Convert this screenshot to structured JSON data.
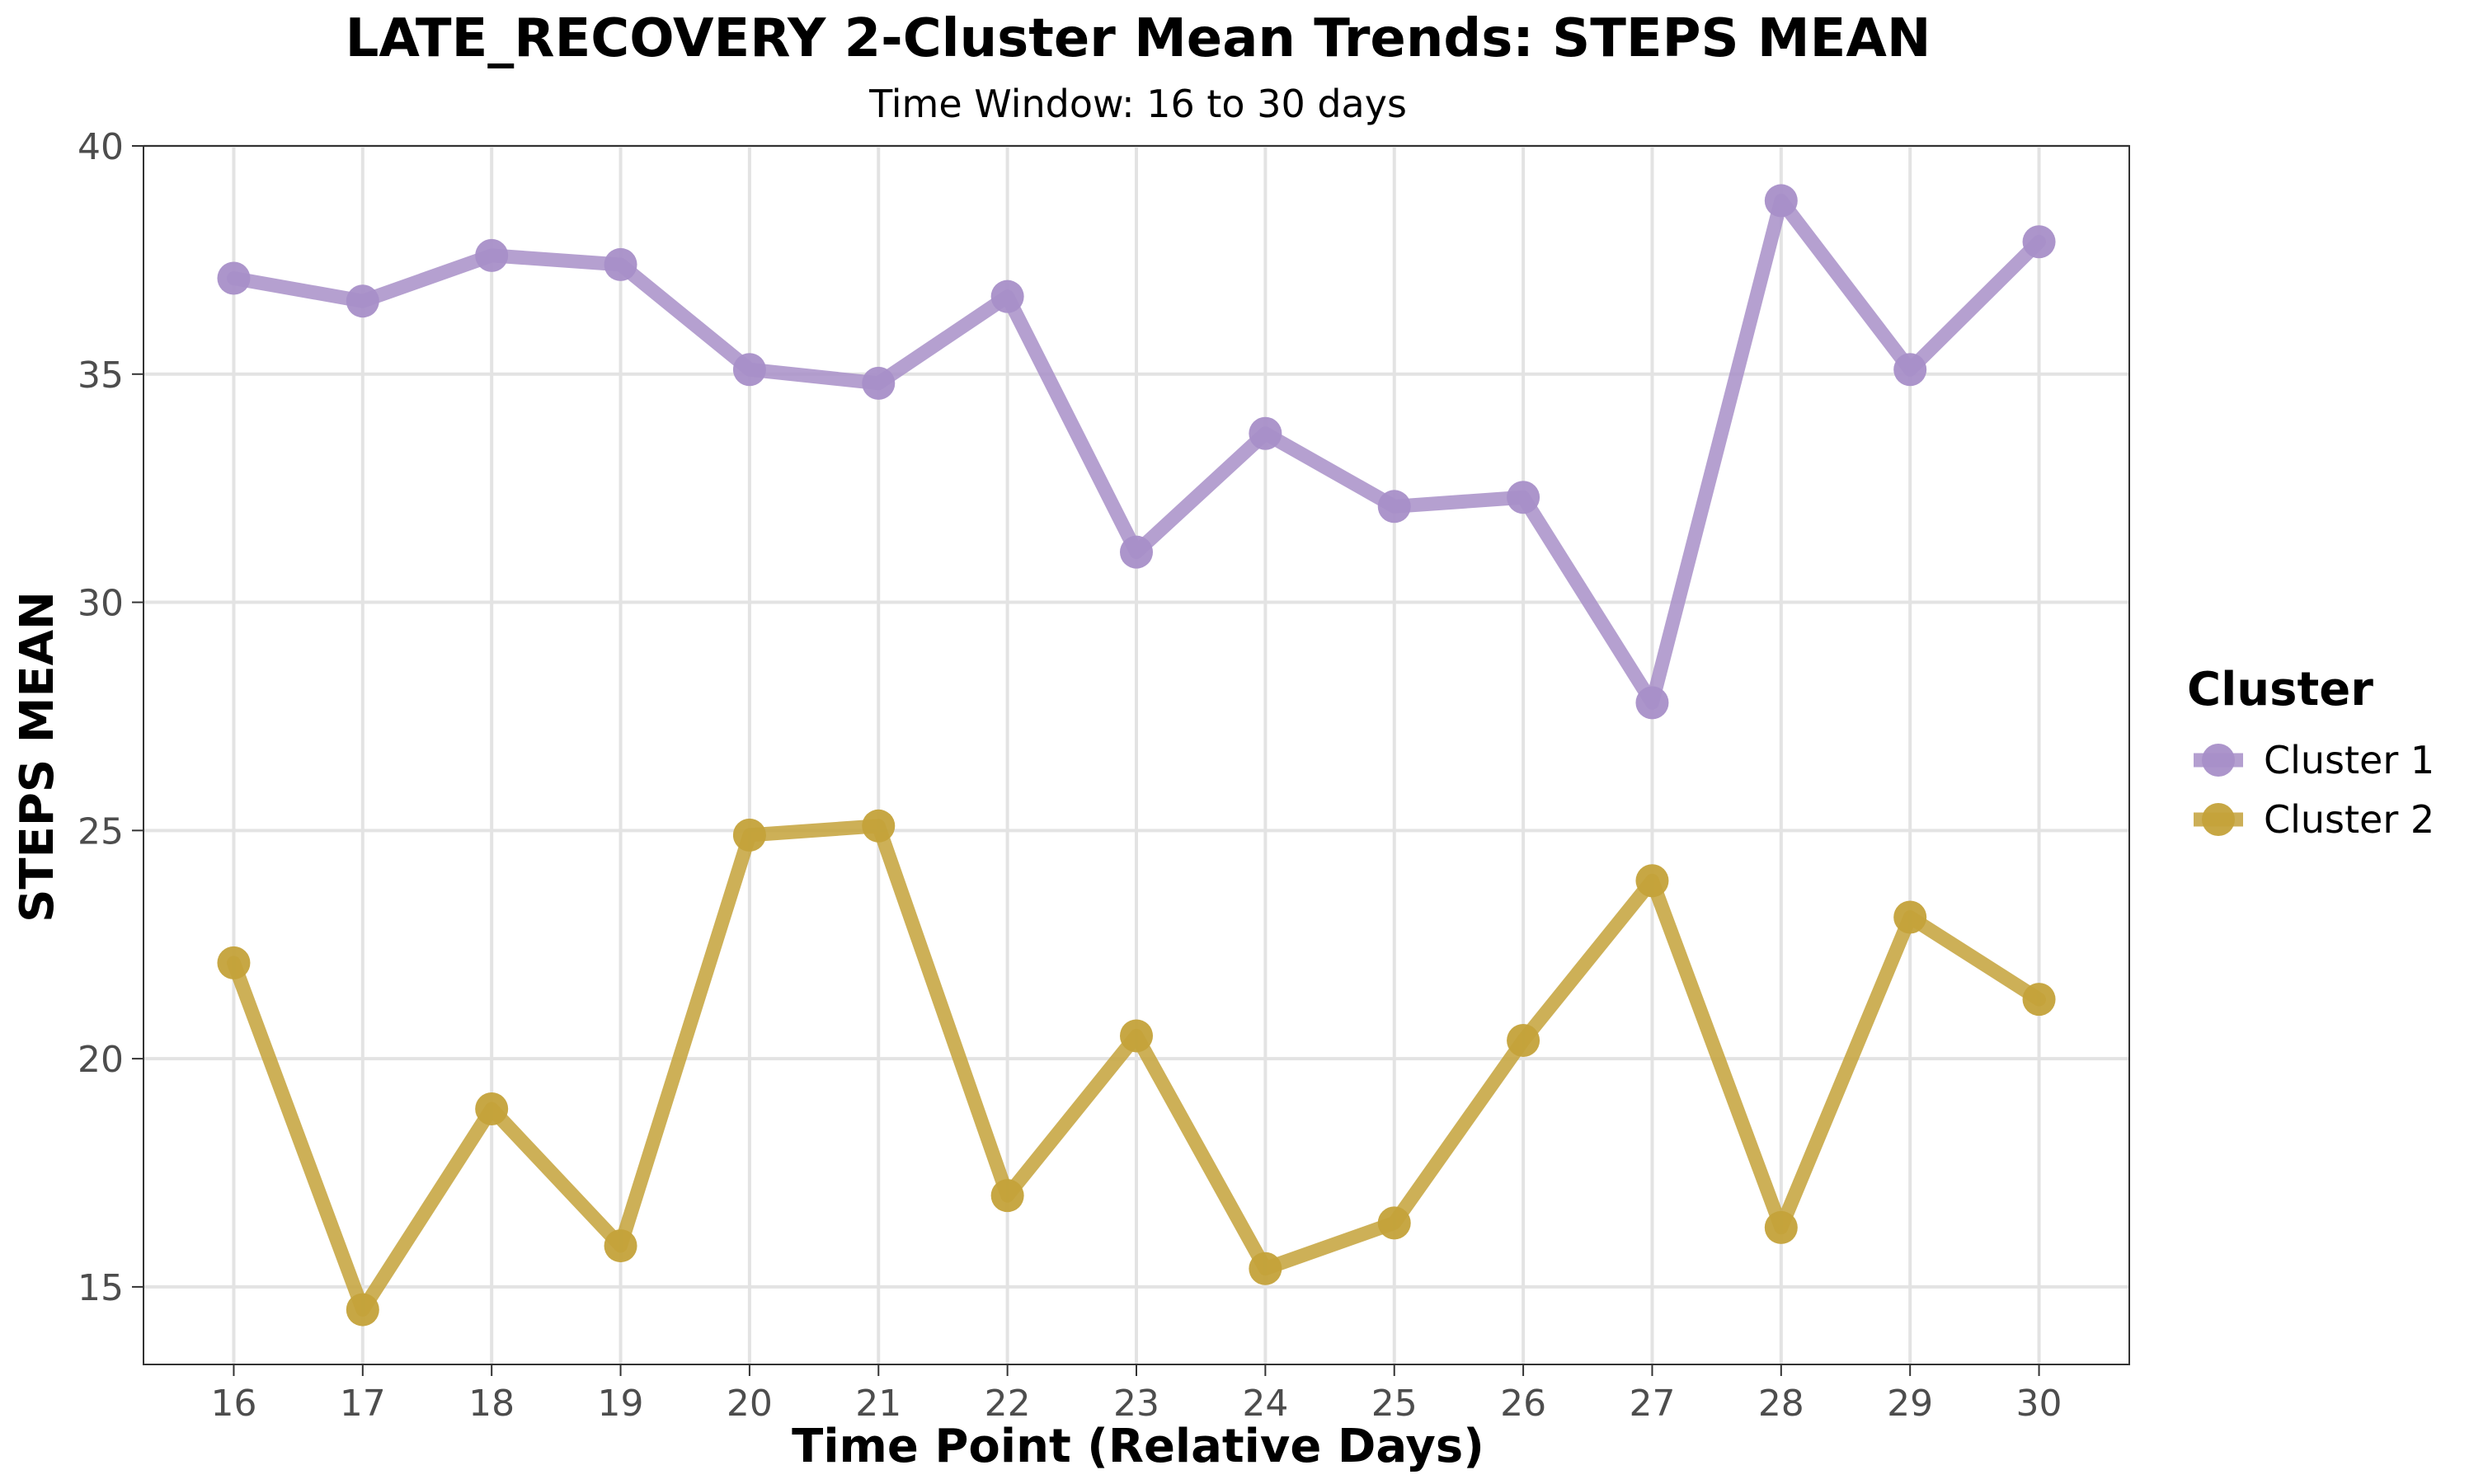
{
  "chart_data": {
    "type": "line",
    "title": "LATE_RECOVERY 2-Cluster Mean Trends: STEPS MEAN",
    "subtitle": "Time Window: 16 to 30 days",
    "xlabel": "Time Point (Relative Days)",
    "ylabel": "STEPS MEAN",
    "x": [
      16,
      17,
      18,
      19,
      20,
      21,
      22,
      23,
      24,
      25,
      26,
      27,
      28,
      29,
      30
    ],
    "xlim": [
      15.3,
      30.7
    ],
    "ylim": [
      13.3,
      40.0
    ],
    "yticks": [
      15,
      20,
      25,
      30,
      35,
      40
    ],
    "grid": true,
    "legend": {
      "title": "Cluster",
      "placement": "right"
    },
    "series": [
      {
        "name": "Cluster 1",
        "color": "#a88fc8",
        "values": [
          37.1,
          36.6,
          37.6,
          37.4,
          35.1,
          34.8,
          36.7,
          31.1,
          33.7,
          32.1,
          32.3,
          27.8,
          38.8,
          35.1,
          37.9
        ]
      },
      {
        "name": "Cluster 2",
        "color": "#c4a23a",
        "values": [
          22.1,
          14.5,
          18.9,
          15.9,
          24.9,
          25.1,
          17.0,
          20.5,
          15.4,
          16.4,
          20.4,
          23.9,
          16.3,
          23.1,
          21.3
        ]
      }
    ]
  }
}
